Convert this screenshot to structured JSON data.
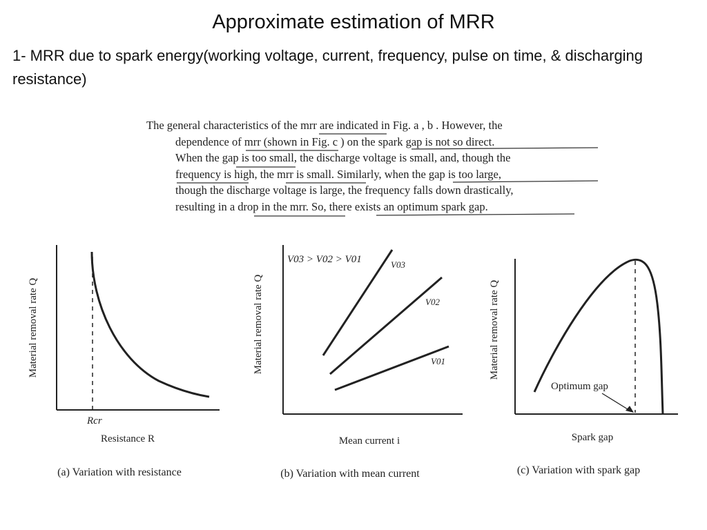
{
  "slide": {
    "title": "Approximate estimation of MRR",
    "subtitle": "1- MRR due to spark energy(working voltage, current, frequency, pulse on time, & discharging resistance)"
  },
  "scan_text": {
    "lines": [
      "The general characteristics of the mrr are indicated in Fig. a , b . However, the",
      "dependence of mrr (shown in Fig. c ) on the spark gap is not so direct.",
      "When the gap is too small, the discharge voltage is small, and, though the",
      "frequency is high, the mrr is small. Similarly, when the gap is too large,",
      "though the discharge voltage is large, the frequency falls down drastically,",
      "resulting in a drop in the mrr. So, there exists an optimum spark gap."
    ]
  },
  "figures": {
    "a": {
      "ylabel": "Material removal rate Q",
      "xlabel": "Resistance R",
      "marker": "Rcr",
      "caption": "(a) Variation with resistance"
    },
    "b": {
      "ylabel": "Material removal rate Q",
      "xlabel": "Mean current i",
      "legend": "V03 > V02 > V01",
      "line_labels": [
        "V03",
        "V02",
        "V01"
      ],
      "caption": "(b) Variation with mean current"
    },
    "c": {
      "ylabel": "Material removal rate Q",
      "xlabel": "Spark gap",
      "annotation": "Optimum gap",
      "caption": "(c) Variation with spark gap"
    }
  },
  "colors": {
    "ink": "#222222",
    "background": "#ffffff"
  }
}
